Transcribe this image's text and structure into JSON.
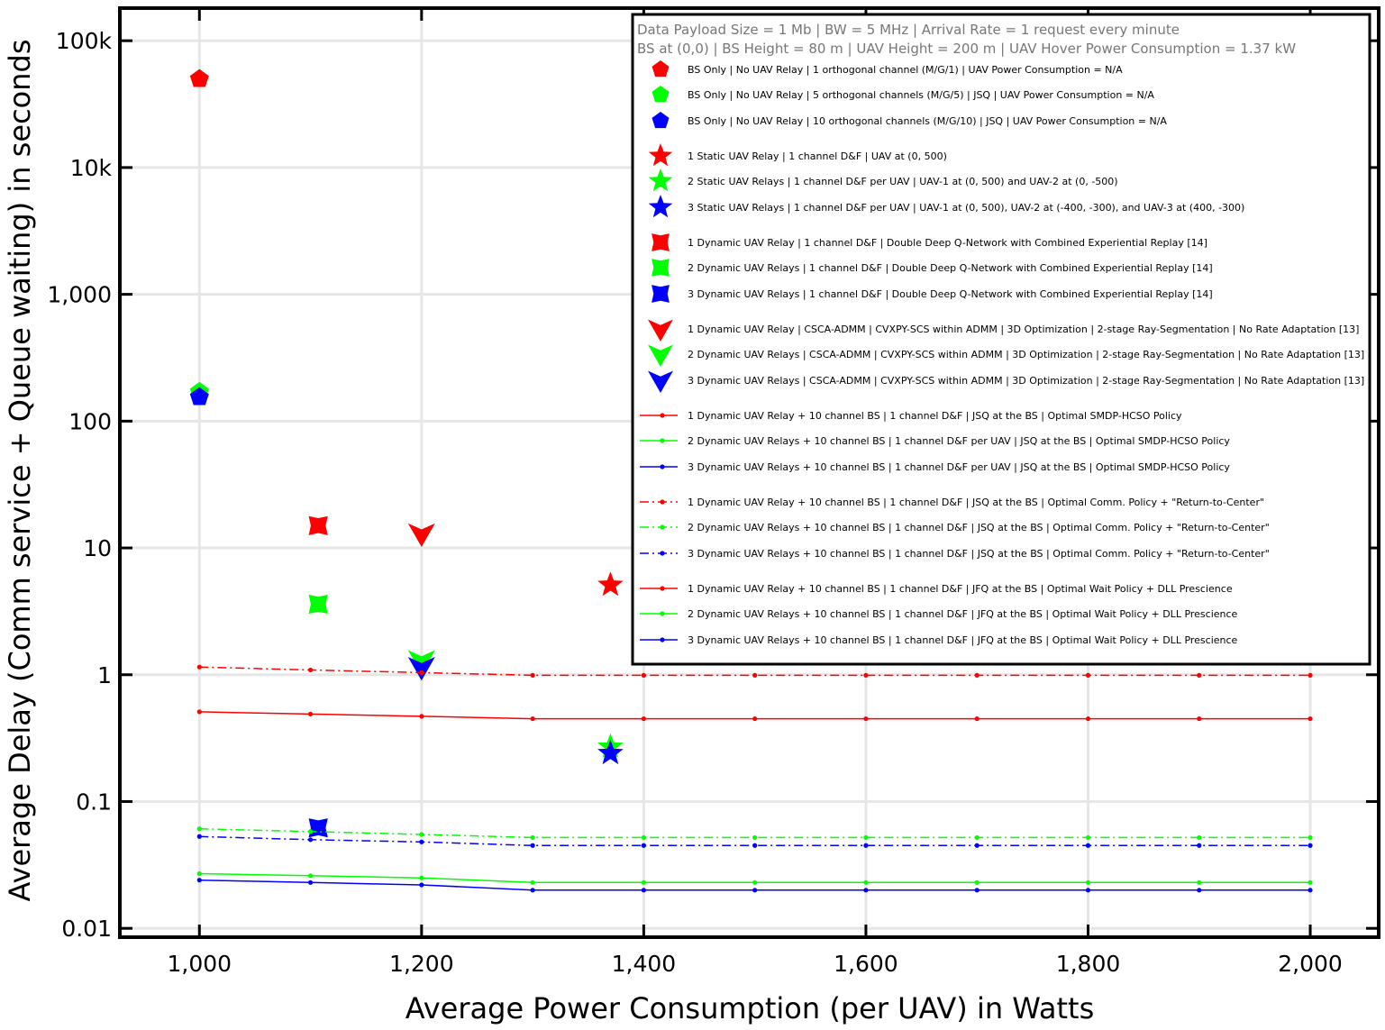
{
  "chart_data": {
    "type": "scatter",
    "title": "",
    "xlabel": "Average Power Consumption (per UAV) in Watts",
    "ylabel": "Average Delay (Comm service + Queue waiting) in seconds",
    "xlim": [
      930,
      2060
    ],
    "ylim": [
      0.0088,
      175000
    ],
    "yscale": "log",
    "grid": true,
    "legend_position": "top-right",
    "x_ticks": [
      {
        "value": 1000,
        "label": "1,000"
      },
      {
        "value": 1200,
        "label": "1,200"
      },
      {
        "value": 1400,
        "label": "1,400"
      },
      {
        "value": 1600,
        "label": "1,600"
      },
      {
        "value": 1800,
        "label": "1,800"
      },
      {
        "value": 2000,
        "label": "2,000"
      }
    ],
    "y_ticks": [
      {
        "value": 0.01,
        "label": "0.01"
      },
      {
        "value": 0.1,
        "label": "0.1"
      },
      {
        "value": 1,
        "label": "1"
      },
      {
        "value": 10,
        "label": "10"
      },
      {
        "value": 100,
        "label": "100"
      },
      {
        "value": 1000,
        "label": "1,000"
      },
      {
        "value": 10000,
        "label": "10k"
      },
      {
        "value": 100000,
        "label": "100k"
      }
    ],
    "legend_header": [
      "Data Payload Size = 1 Mb | BW = 5 MHz | Arrival Rate = 1 request every minute",
      "BS at (0,0) | BS Height = 80 m | UAV Height = 200 m | UAV Hover Power Consumption = 1.37 kW"
    ],
    "series": [
      {
        "name": "BS Only | No UAV Relay | 1 orthogonal channel (M/G/1) | UAV Power Consumption = N/A",
        "color": "#ff0000",
        "marker": "pentagon",
        "x": [
          1000
        ],
        "y": [
          50000
        ]
      },
      {
        "name": "BS Only | No UAV Relay | 5 orthogonal channels (M/G/5) | JSQ | UAV Power Consumption = N/A",
        "color": "#00ff00",
        "marker": "pentagon",
        "x": [
          1000
        ],
        "y": [
          170
        ]
      },
      {
        "name": "BS Only | No UAV Relay | 10 orthogonal channels (M/G/10) | JSQ | UAV Power Consumption = N/A",
        "color": "#0000ff",
        "marker": "pentagon",
        "x": [
          1000
        ],
        "y": [
          155
        ]
      },
      {
        "name": "1 Static UAV Relay | 1 channel D&F | UAV at (0, 500)",
        "color": "#ff0000",
        "marker": "star",
        "x": [
          1370
        ],
        "y": [
          5.1
        ]
      },
      {
        "name": "2 Static UAV Relays | 1 channel D&F per UAV | UAV-1 at (0, 500) and UAV-2 at (0, -500)",
        "color": "#00ff00",
        "marker": "star",
        "x": [
          1370
        ],
        "y": [
          0.27
        ]
      },
      {
        "name": "3 Static UAV Relays | 1 channel D&F per UAV | UAV-1 at (0, 500), UAV-2 at (-400, -300), and UAV-3 at (400, -300)",
        "color": "#0000ff",
        "marker": "star",
        "x": [
          1370
        ],
        "y": [
          0.24
        ]
      },
      {
        "name": "1 Dynamic UAV Relay | 1 channel D&F | Double Deep Q-Network with Combined Experiential Replay [14]",
        "color": "#ff0000",
        "marker": "astroid",
        "x": [
          1107
        ],
        "y": [
          15
        ]
      },
      {
        "name": "2 Dynamic UAV Relays | 1 channel D&F | Double Deep Q-Network with Combined Experiential Replay [14]",
        "color": "#00ff00",
        "marker": "astroid",
        "x": [
          1107
        ],
        "y": [
          3.6
        ]
      },
      {
        "name": "3 Dynamic UAV Relays | 1 channel D&F | Double Deep Q-Network with Combined Experiential Replay [14]",
        "color": "#0000ff",
        "marker": "astroid",
        "x": [
          1107
        ],
        "y": [
          0.062
        ]
      },
      {
        "name": "1 Dynamic UAV Relay | CSCA-ADMM | CVXPY-SCS within ADMM | 3D Optimization | 2-stage Ray-Segmentation | No Rate Adaptation [13]",
        "color": "#ff0000",
        "marker": "triangle-down",
        "x": [
          1200
        ],
        "y": [
          13
        ]
      },
      {
        "name": "2 Dynamic UAV Relays | CSCA-ADMM | CVXPY-SCS within ADMM | 3D Optimization | 2-stage Ray-Segmentation | No Rate Adaptation [13]",
        "color": "#00ff00",
        "marker": "triangle-down",
        "x": [
          1200
        ],
        "y": [
          1.3
        ]
      },
      {
        "name": "3 Dynamic UAV Relays | CSCA-ADMM | CVXPY-SCS within ADMM | 3D Optimization | 2-stage Ray-Segmentation | No Rate Adaptation [13]",
        "color": "#0000ff",
        "marker": "triangle-down",
        "x": [
          1200
        ],
        "y": [
          1.15
        ]
      },
      {
        "name": "1 Dynamic UAV Relay + 10 channel BS | 1 channel D&F | JSQ at the BS | Optimal SMDP-HCSO Policy",
        "color": "#ff0000",
        "marker": "line",
        "dash": "solid",
        "x": [],
        "y": []
      },
      {
        "name": "2 Dynamic UAV Relays + 10 channel BS | 1 channel D&F per UAV | JSQ at the BS | Optimal SMDP-HCSO Policy",
        "color": "#00ff00",
        "marker": "line",
        "dash": "solid",
        "x": [],
        "y": []
      },
      {
        "name": "3 Dynamic UAV Relays + 10 channel BS | 1 channel D&F per UAV | JSQ at the BS | Optimal SMDP-HCSO Policy",
        "color": "#0000ff",
        "marker": "line",
        "dash": "solid",
        "x": [],
        "y": []
      },
      {
        "name": "1 Dynamic UAV Relay + 10 channel BS | 1 channel D&F | JSQ at the BS | Optimal Comm. Policy + \"Return-to-Center\"",
        "color": "#ff0000",
        "marker": "line",
        "dash": "dashdot",
        "x": [
          1000,
          1100,
          1200,
          1300,
          1400,
          1500,
          1600,
          1700,
          1800,
          1900,
          2000
        ],
        "y": [
          1.15,
          1.09,
          1.04,
          0.99,
          0.99,
          0.99,
          0.99,
          0.99,
          0.99,
          0.99,
          0.99
        ]
      },
      {
        "name": "2 Dynamic UAV Relays + 10 channel BS | 1 channel D&F | JSQ at the BS | Optimal Comm. Policy + \"Return-to-Center\"",
        "color": "#00ff00",
        "marker": "line",
        "dash": "dashdot",
        "x": [
          1000,
          1100,
          1200,
          1300,
          1400,
          1500,
          1600,
          1700,
          1800,
          1900,
          2000
        ],
        "y": [
          0.061,
          0.058,
          0.055,
          0.052,
          0.052,
          0.052,
          0.052,
          0.052,
          0.052,
          0.052,
          0.052
        ]
      },
      {
        "name": "3 Dynamic UAV Relays + 10 channel BS | 1 channel D&F | JSQ at the BS | Optimal Comm. Policy + \"Return-to-Center\"",
        "color": "#0000ff",
        "marker": "line",
        "dash": "dashdot",
        "x": [
          1000,
          1100,
          1200,
          1300,
          1400,
          1500,
          1600,
          1700,
          1800,
          1900,
          2000
        ],
        "y": [
          0.053,
          0.05,
          0.048,
          0.045,
          0.045,
          0.045,
          0.045,
          0.045,
          0.045,
          0.045,
          0.045
        ]
      },
      {
        "name": "1 Dynamic UAV Relay + 10 channel BS | 1 channel D&F | JFQ at the BS | Optimal Wait Policy + DLL Prescience",
        "color": "#ff0000",
        "marker": "line",
        "dash": "solid",
        "x": [
          1000,
          1100,
          1200,
          1300,
          1400,
          1500,
          1600,
          1700,
          1800,
          1900,
          2000
        ],
        "y": [
          0.51,
          0.49,
          0.47,
          0.45,
          0.45,
          0.45,
          0.45,
          0.45,
          0.45,
          0.45,
          0.45
        ]
      },
      {
        "name": "2 Dynamic UAV Relays + 10 channel BS | 1 channel D&F | JFQ at the BS | Optimal Wait Policy + DLL Prescience",
        "color": "#00ff00",
        "marker": "line",
        "dash": "solid",
        "x": [
          1000,
          1100,
          1200,
          1300,
          1400,
          1500,
          1600,
          1700,
          1800,
          1900,
          2000
        ],
        "y": [
          0.027,
          0.026,
          0.025,
          0.023,
          0.023,
          0.023,
          0.023,
          0.023,
          0.023,
          0.023,
          0.023
        ]
      },
      {
        "name": "3 Dynamic UAV Relays + 10 channel BS | 1 channel D&F | JFQ at the BS | Optimal Wait Policy + DLL Prescience",
        "color": "#0000ff",
        "marker": "line",
        "dash": "solid",
        "x": [
          1000,
          1100,
          1200,
          1300,
          1400,
          1500,
          1600,
          1700,
          1800,
          1900,
          2000
        ],
        "y": [
          0.024,
          0.023,
          0.022,
          0.02,
          0.02,
          0.02,
          0.02,
          0.02,
          0.02,
          0.02,
          0.02
        ]
      }
    ]
  }
}
